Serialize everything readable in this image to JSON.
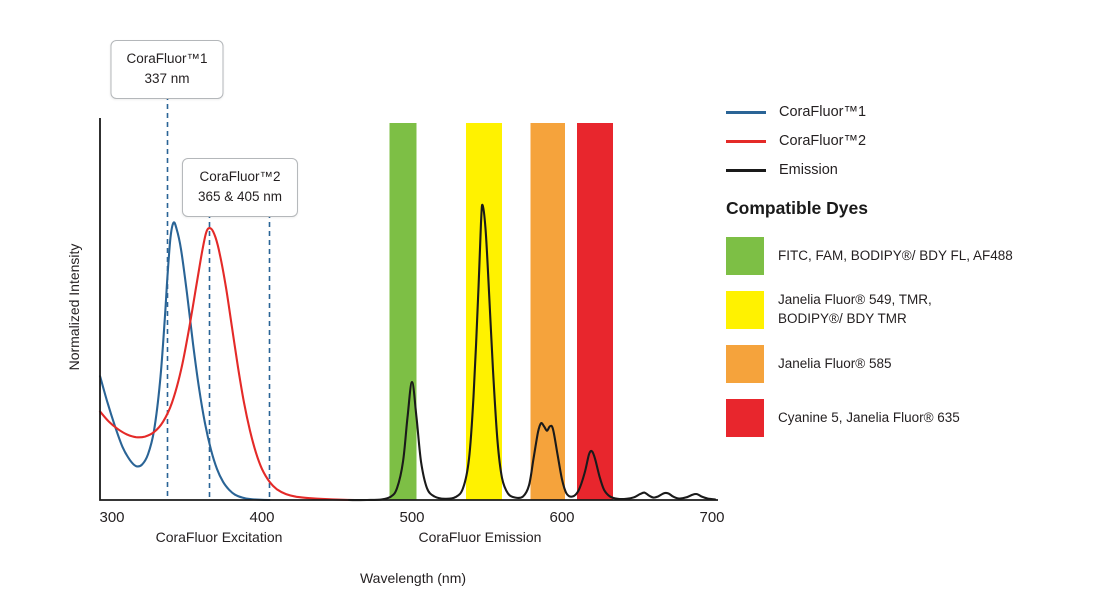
{
  "colors": {
    "curve_blue": "#2a6496",
    "curve_red": "#e42a28",
    "curve_black": "#1a1a1a",
    "band_green": "#7dbf45",
    "band_yellow": "#fff200",
    "band_orange": "#f5a33c",
    "band_red": "#e8262d",
    "text": "#231f20"
  },
  "callouts": [
    {
      "title": "CoraFluor™1",
      "value": "337 nm"
    },
    {
      "title": "CoraFluor™2",
      "value": "365 & 405 nm"
    }
  ],
  "legend": {
    "items": [
      {
        "label": "CoraFluor™1",
        "color": "#2a6496"
      },
      {
        "label": "CoraFluor™2",
        "color": "#e42a28"
      },
      {
        "label": "Emission",
        "color": "#1a1a1a"
      }
    ]
  },
  "dyes": {
    "title": "Compatible Dyes",
    "items": [
      {
        "label": "FITC, FAM, BODIPY®/ BDY FL, AF488",
        "color": "#7dbf45"
      },
      {
        "label": "Janelia Fluor® 549, TMR,\nBODIPY®/ BDY TMR",
        "color": "#fff200"
      },
      {
        "label": "Janelia Fluor® 585",
        "color": "#f5a33c"
      },
      {
        "label": "Cyanine 5, Janelia Fluor® 635",
        "color": "#e8262d"
      }
    ]
  },
  "chart_data": {
    "type": "line",
    "xlabel": "Wavelength (nm)",
    "ylabel": "Normalized Intensity",
    "x_ticks": [
      300,
      400,
      500,
      600,
      700
    ],
    "xlim": [
      292,
      705
    ],
    "ylim": [
      0,
      1.1
    ],
    "grid": false,
    "x_annotations": [
      {
        "label": "CoraFluor Excitation"
      },
      {
        "label": "CoraFluor Emission"
      }
    ],
    "dashed_lines": [
      {
        "wl": 337,
        "callout": 0
      },
      {
        "wl": 365,
        "callout": 1
      },
      {
        "wl": 405,
        "callout": 1
      }
    ],
    "bands": [
      {
        "from": 485,
        "to": 503,
        "color": "#7dbf45"
      },
      {
        "from": 536,
        "to": 560,
        "color": "#fff200"
      },
      {
        "from": 579,
        "to": 602,
        "color": "#f5a33c"
      },
      {
        "from": 610,
        "to": 634,
        "color": "#e8262d"
      }
    ],
    "series": [
      {
        "name": "CoraFluor™1",
        "role": "excitation",
        "color": "#2a6496",
        "points": [
          [
            292,
            0.42
          ],
          [
            297,
            0.33
          ],
          [
            302,
            0.25
          ],
          [
            307,
            0.18
          ],
          [
            312,
            0.135
          ],
          [
            316,
            0.115
          ],
          [
            320,
            0.12
          ],
          [
            324,
            0.155
          ],
          [
            328,
            0.235
          ],
          [
            332,
            0.4
          ],
          [
            335,
            0.6
          ],
          [
            337,
            0.76
          ],
          [
            339,
            0.89
          ],
          [
            341,
            0.94
          ],
          [
            343,
            0.92
          ],
          [
            346,
            0.85
          ],
          [
            350,
            0.7
          ],
          [
            354,
            0.53
          ],
          [
            358,
            0.38
          ],
          [
            362,
            0.26
          ],
          [
            366,
            0.17
          ],
          [
            370,
            0.105
          ],
          [
            374,
            0.062
          ],
          [
            378,
            0.035
          ],
          [
            382,
            0.018
          ],
          [
            387,
            0.008
          ],
          [
            392,
            0.003
          ],
          [
            398,
            0.001
          ],
          [
            405,
            0
          ]
        ]
      },
      {
        "name": "CoraFluor™2",
        "role": "excitation",
        "color": "#e42a28",
        "points": [
          [
            292,
            0.3
          ],
          [
            298,
            0.265
          ],
          [
            304,
            0.24
          ],
          [
            310,
            0.222
          ],
          [
            316,
            0.213
          ],
          [
            322,
            0.215
          ],
          [
            328,
            0.23
          ],
          [
            334,
            0.265
          ],
          [
            340,
            0.33
          ],
          [
            346,
            0.44
          ],
          [
            351,
            0.57
          ],
          [
            356,
            0.72
          ],
          [
            360,
            0.84
          ],
          [
            363,
            0.91
          ],
          [
            366,
            0.92
          ],
          [
            369,
            0.89
          ],
          [
            372,
            0.83
          ],
          [
            376,
            0.72
          ],
          [
            380,
            0.585
          ],
          [
            384,
            0.45
          ],
          [
            388,
            0.33
          ],
          [
            392,
            0.235
          ],
          [
            396,
            0.16
          ],
          [
            400,
            0.105
          ],
          [
            405,
            0.062
          ],
          [
            410,
            0.036
          ],
          [
            416,
            0.02
          ],
          [
            423,
            0.011
          ],
          [
            432,
            0.006
          ],
          [
            442,
            0.003
          ],
          [
            452,
            0.001
          ],
          [
            462,
            0
          ]
        ]
      },
      {
        "name": "Emission",
        "role": "emission",
        "color": "#1a1a1a",
        "points": [
          [
            458,
            0
          ],
          [
            470,
            0
          ],
          [
            480,
            0.002
          ],
          [
            486,
            0.012
          ],
          [
            490,
            0.04
          ],
          [
            494,
            0.13
          ],
          [
            497,
            0.28
          ],
          [
            500,
            0.4
          ],
          [
            503,
            0.28
          ],
          [
            506,
            0.13
          ],
          [
            510,
            0.04
          ],
          [
            515,
            0.012
          ],
          [
            522,
            0.004
          ],
          [
            529,
            0.01
          ],
          [
            534,
            0.04
          ],
          [
            538,
            0.14
          ],
          [
            541,
            0.35
          ],
          [
            544,
            0.68
          ],
          [
            546,
            0.94
          ],
          [
            547,
            1.0
          ],
          [
            549,
            0.92
          ],
          [
            551,
            0.74
          ],
          [
            554,
            0.44
          ],
          [
            557,
            0.2
          ],
          [
            560,
            0.075
          ],
          [
            564,
            0.022
          ],
          [
            569,
            0.008
          ],
          [
            574,
            0.012
          ],
          [
            578,
            0.05
          ],
          [
            581,
            0.14
          ],
          [
            584,
            0.23
          ],
          [
            586,
            0.26
          ],
          [
            588,
            0.25
          ],
          [
            590,
            0.235
          ],
          [
            592,
            0.25
          ],
          [
            594,
            0.24
          ],
          [
            597,
            0.155
          ],
          [
            600,
            0.07
          ],
          [
            603,
            0.022
          ],
          [
            607,
            0.012
          ],
          [
            611,
            0.032
          ],
          [
            615,
            0.09
          ],
          [
            618,
            0.155
          ],
          [
            620,
            0.165
          ],
          [
            622,
            0.14
          ],
          [
            625,
            0.08
          ],
          [
            628,
            0.035
          ],
          [
            632,
            0.012
          ],
          [
            637,
            0.004
          ],
          [
            643,
            0.004
          ],
          [
            648,
            0.009
          ],
          [
            652,
            0.02
          ],
          [
            655,
            0.025
          ],
          [
            658,
            0.015
          ],
          [
            661,
            0.008
          ],
          [
            664,
            0.012
          ],
          [
            668,
            0.023
          ],
          [
            671,
            0.022
          ],
          [
            674,
            0.012
          ],
          [
            678,
            0.005
          ],
          [
            683,
            0.009
          ],
          [
            687,
            0.018
          ],
          [
            690,
            0.02
          ],
          [
            693,
            0.012
          ],
          [
            697,
            0.005
          ],
          [
            702,
            0.002
          ]
        ]
      }
    ]
  }
}
